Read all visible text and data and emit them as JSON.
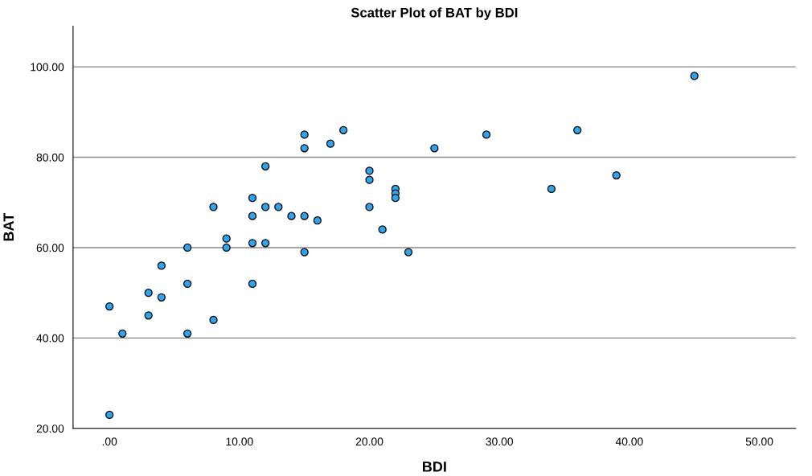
{
  "chart_data": {
    "type": "scatter",
    "title": "Scatter Plot of BAT by BDI",
    "xlabel": "BDI",
    "ylabel": "BAT",
    "x": [
      0,
      0,
      1,
      3,
      3,
      4,
      4,
      6,
      6,
      6,
      8,
      8,
      9,
      9,
      11,
      11,
      11,
      11,
      12,
      12,
      12,
      13,
      14,
      15,
      15,
      15,
      15,
      16,
      17,
      18,
      20,
      20,
      20,
      21,
      22,
      22,
      22,
      23,
      25,
      29,
      34,
      36,
      39,
      45
    ],
    "series": [
      {
        "color": "#2fa4ee",
        "values": [
          47,
          23,
          41,
          50,
          45,
          56,
          49,
          60,
          52,
          41,
          69,
          44,
          62,
          60,
          71,
          67,
          61,
          52,
          78,
          69,
          61,
          69,
          67,
          85,
          82,
          67,
          59,
          66,
          83,
          86,
          77,
          75,
          69,
          64,
          73,
          72,
          71,
          59,
          82,
          85,
          73,
          86,
          76,
          98
        ]
      }
    ],
    "xlim": [
      -2.8,
      52.8
    ],
    "ylim": [
      20,
      109
    ],
    "xticks": [
      {
        "value": 0,
        "label": ".00"
      },
      {
        "value": 10,
        "label": "10.00"
      },
      {
        "value": 20,
        "label": "20.00"
      },
      {
        "value": 30,
        "label": "30.00"
      },
      {
        "value": 40,
        "label": "40.00"
      },
      {
        "value": 50,
        "label": "50.00"
      }
    ],
    "yticks": [
      {
        "value": 20,
        "label": "20.00"
      },
      {
        "value": 40,
        "label": "40.00"
      },
      {
        "value": 60,
        "label": "60.00"
      },
      {
        "value": 80,
        "label": "80.00"
      },
      {
        "value": 100,
        "label": "100.00"
      }
    ],
    "grid": "y",
    "marker": "circle",
    "legend": false
  }
}
